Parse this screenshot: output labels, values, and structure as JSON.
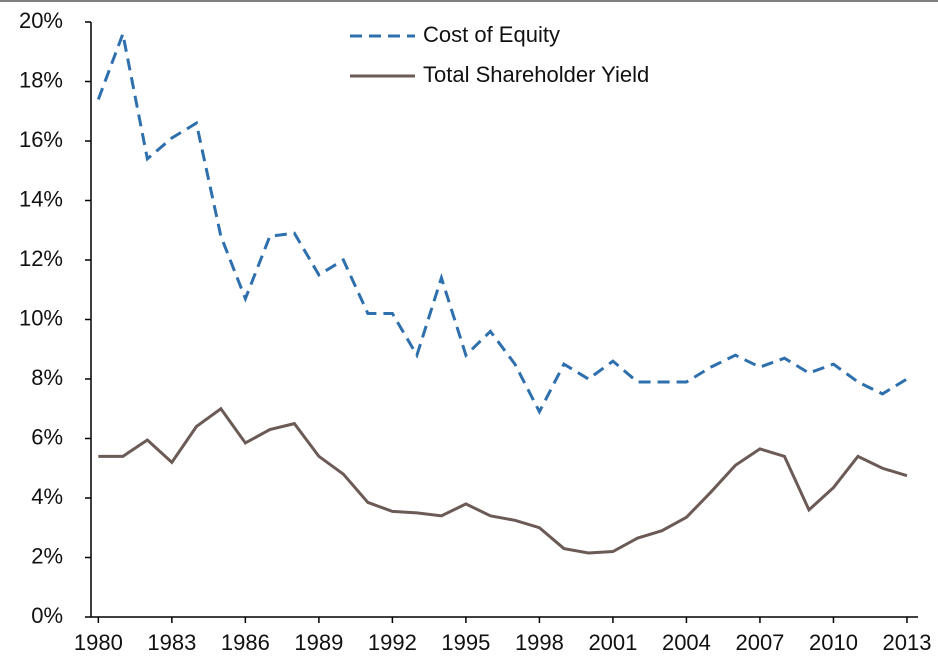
{
  "chart_data": {
    "type": "line",
    "x": [
      1980,
      1981,
      1982,
      1983,
      1984,
      1985,
      1986,
      1987,
      1988,
      1989,
      1990,
      1991,
      1992,
      1993,
      1994,
      1995,
      1996,
      1997,
      1998,
      1999,
      2000,
      2001,
      2002,
      2003,
      2004,
      2005,
      2006,
      2007,
      2008,
      2009,
      2010,
      2011,
      2012,
      2013
    ],
    "series": [
      {
        "name": "Cost of Equity",
        "color": "#2e6fad",
        "dashed": true,
        "values": [
          17.4,
          19.6,
          15.4,
          16.1,
          16.6,
          12.8,
          10.7,
          12.8,
          12.9,
          11.5,
          12.0,
          10.2,
          10.2,
          8.8,
          11.4,
          8.8,
          9.6,
          8.5,
          6.9,
          8.5,
          8.0,
          8.6,
          7.9,
          7.9,
          7.9,
          8.4,
          8.8,
          8.4,
          8.7,
          8.2,
          8.5,
          7.9,
          7.5,
          8.0
        ]
      },
      {
        "name": "Total Shareholder Yield",
        "color": "#6b5a55",
        "dashed": false,
        "values": [
          5.4,
          5.4,
          5.95,
          5.2,
          6.4,
          7.0,
          5.85,
          6.3,
          6.5,
          5.4,
          4.8,
          3.85,
          3.55,
          3.5,
          3.4,
          3.8,
          3.4,
          3.25,
          3.0,
          2.3,
          2.15,
          2.2,
          2.65,
          2.9,
          3.35,
          4.2,
          5.1,
          5.65,
          5.4,
          3.6,
          4.35,
          5.4,
          5.0,
          4.75
        ]
      }
    ],
    "xlim": [
      1979.7,
      2013.45
    ],
    "xticks": [
      1980,
      1983,
      1986,
      1989,
      1992,
      1995,
      1998,
      2001,
      2004,
      2007,
      2010,
      2013
    ],
    "ylim": [
      0,
      20
    ],
    "yticks": [
      {
        "value": 0,
        "label": "0%"
      },
      {
        "value": 2,
        "label": "2%"
      },
      {
        "value": 4,
        "label": "4%"
      },
      {
        "value": 6,
        "label": "6%"
      },
      {
        "value": 8,
        "label": "8%"
      },
      {
        "value": 10,
        "label": "10%"
      },
      {
        "value": 12,
        "label": "12%"
      },
      {
        "value": 14,
        "label": "14%"
      },
      {
        "value": 16,
        "label": "16%"
      },
      {
        "value": 18,
        "label": "18%"
      },
      {
        "value": 20,
        "label": "20%"
      }
    ],
    "legend": "top"
  }
}
